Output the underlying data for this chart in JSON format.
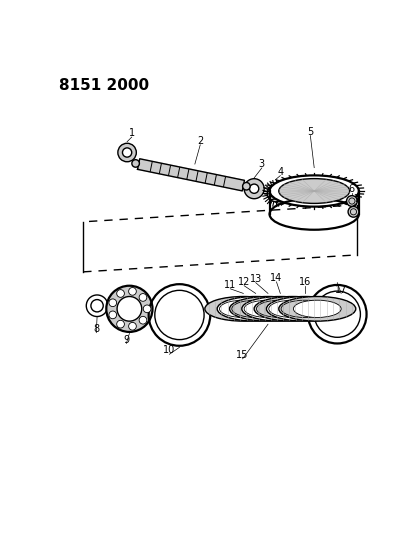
{
  "title": "8151 2000",
  "bg_color": "#ffffff",
  "line_color": "#000000",
  "light_gray": "#cccccc",
  "mid_gray": "#aaaaaa",
  "dark_gray": "#555555",
  "lw": 1.0,
  "lw_thick": 1.6
}
